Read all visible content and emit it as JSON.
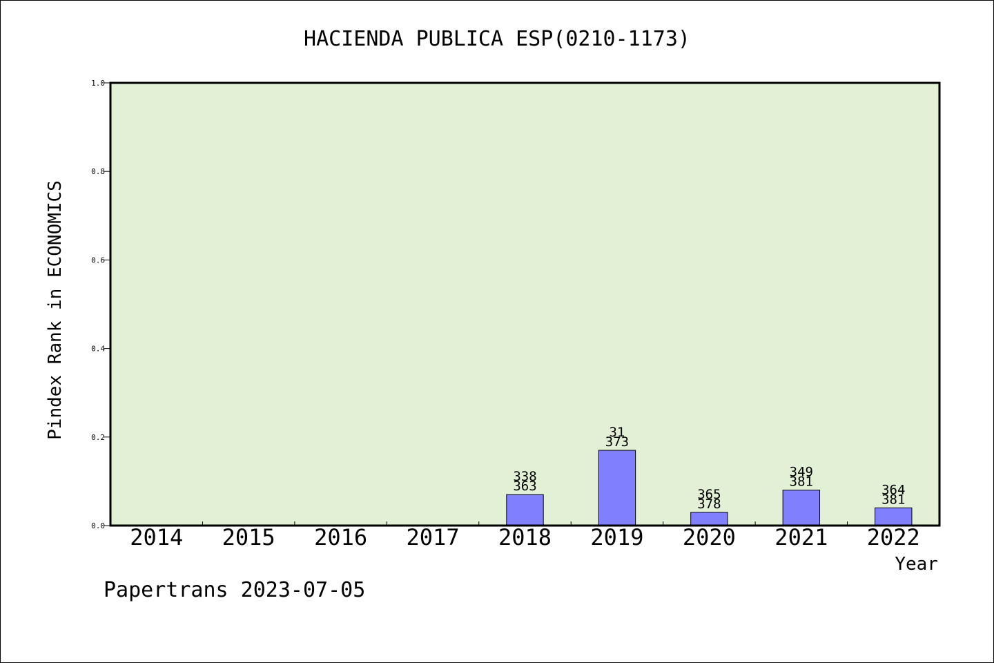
{
  "chart_data": {
    "type": "bar",
    "title": "HACIENDA PUBLICA ESP(0210-1173)",
    "xlabel": "Year",
    "ylabel": "Pindex Rank in ECONOMICS",
    "ylim": [
      0,
      1.0
    ],
    "yticks": [
      "0.0",
      "0.2",
      "0.4",
      "0.6",
      "0.8",
      "1.0"
    ],
    "categories": [
      "2014",
      "2015",
      "2016",
      "2017",
      "2018",
      "2019",
      "2020",
      "2021",
      "2022"
    ],
    "values": [
      null,
      null,
      null,
      null,
      0.07,
      0.17,
      0.03,
      0.08,
      0.04
    ],
    "bar_labels": [
      null,
      null,
      null,
      null,
      {
        "top": "338",
        "bottom": "363"
      },
      {
        "top": "31",
        "bottom": "373"
      },
      {
        "top": "365",
        "bottom": "378"
      },
      {
        "top": "349",
        "bottom": "381"
      },
      {
        "top": "364",
        "bottom": "381"
      }
    ],
    "grid": false,
    "colors": {
      "plot_bg": "#e2f0d6",
      "bar": "#8080ff"
    }
  },
  "footer": "Papertrans 2023-07-05"
}
